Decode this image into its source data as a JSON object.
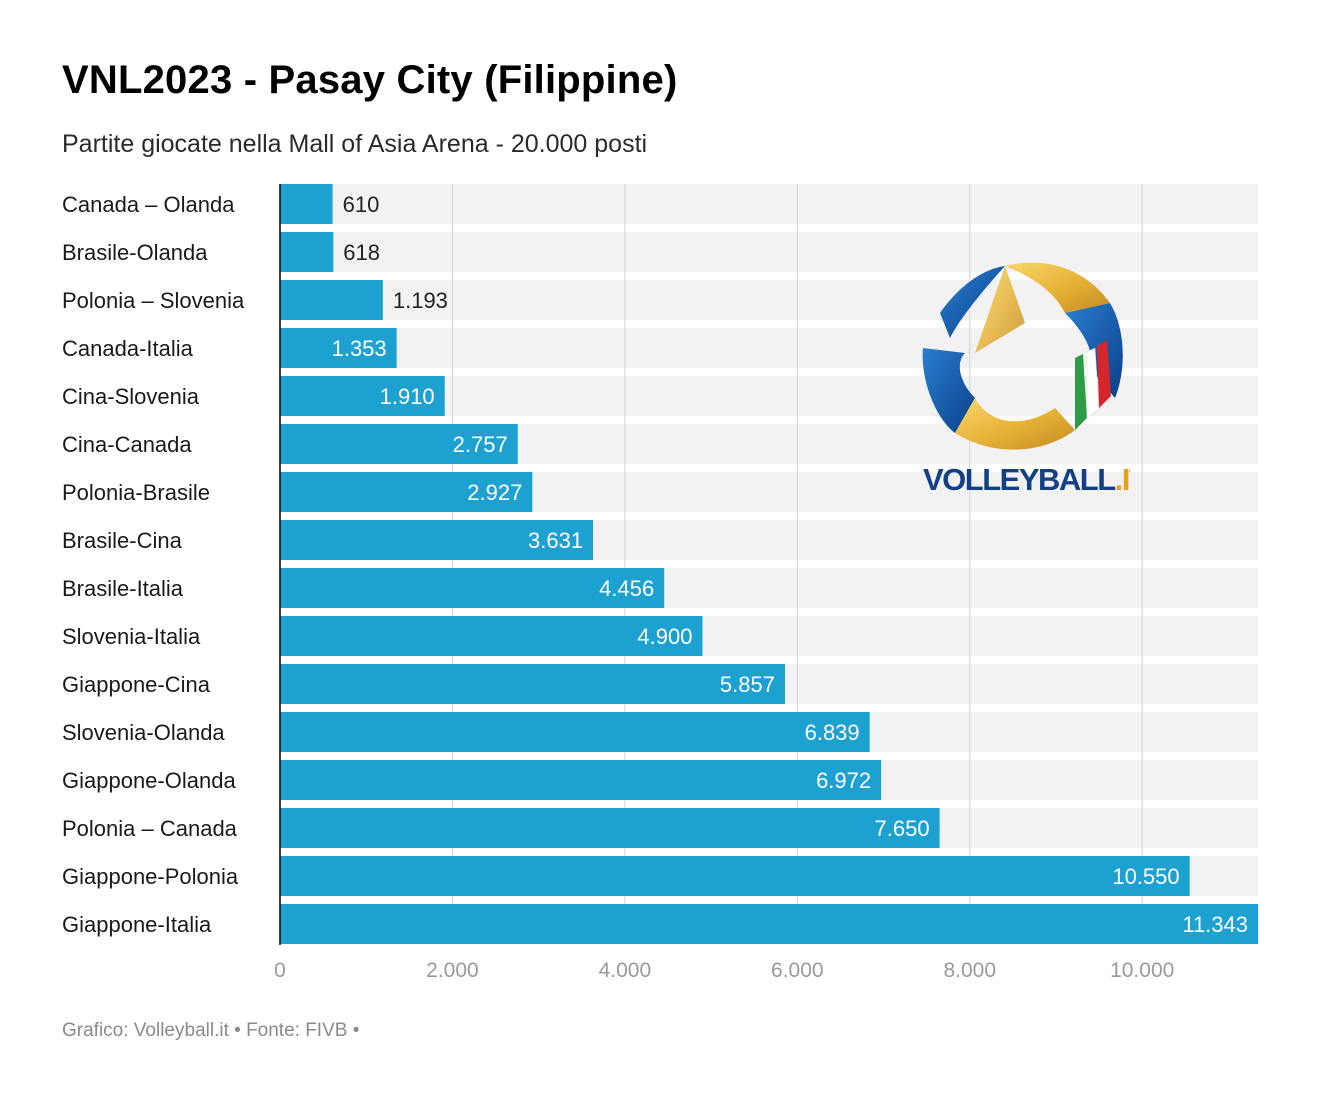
{
  "title": "VNL2023 - Pasay City (Filippine)",
  "subtitle": "Partite giocate nella Mall of Asia Arena - 20.000 posti",
  "footer": "Grafico: Volleyball.it • Fonte: FIVB •",
  "logo": {
    "text_main": "VOLLEYBALL",
    "text_suffix": ".IT",
    "icon": "star-ribbon-logo"
  },
  "colors": {
    "bar": "#1ca1d0",
    "band": "#f2f2f2",
    "grid": "#d2d2d2",
    "axis": "#000000",
    "tick_label": "#9a9a9a",
    "label_inside": "#ffffff",
    "label_outside": "#222222"
  },
  "chart_data": {
    "type": "bar",
    "orientation": "horizontal",
    "categories": [
      "Canada – Olanda",
      "Brasile-Olanda",
      "Polonia – Slovenia",
      "Canada-Italia",
      "Cina-Slovenia",
      "Cina-Canada",
      "Polonia-Brasile",
      "Brasile-Cina",
      "Brasile-Italia",
      "Slovenia-Italia",
      "Giappone-Cina",
      "Slovenia-Olanda",
      "Giappone-Olanda",
      "Polonia – Canada",
      "Giappone-Polonia",
      "Giappone-Italia"
    ],
    "values": [
      610,
      618,
      1193,
      1353,
      1910,
      2757,
      2927,
      3631,
      4456,
      4900,
      5857,
      6839,
      6972,
      7650,
      10550,
      11343
    ],
    "value_labels": [
      "610",
      "618",
      "1.193",
      "1.353",
      "1.910",
      "2.757",
      "2.927",
      "3.631",
      "4.456",
      "4.900",
      "5.857",
      "6.839",
      "6.972",
      "7.650",
      "10.550",
      "11.343"
    ],
    "xlim": [
      0,
      11343
    ],
    "xticks": [
      0,
      2000,
      4000,
      6000,
      8000,
      10000
    ],
    "xtick_labels": [
      "0",
      "2.000",
      "4.000",
      "6.000",
      "8.000",
      "10.000"
    ],
    "grid": true,
    "legend": "none"
  }
}
